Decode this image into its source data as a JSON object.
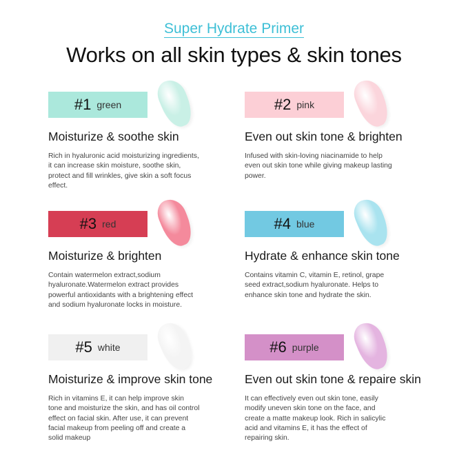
{
  "header": {
    "subtitle": "Super Hydrate Primer",
    "title": "Works on all skin types & skin tones"
  },
  "colors": {
    "accent": "#3dbfd6"
  },
  "items": [
    {
      "number": "#1",
      "color_name": "green",
      "box_color": "#abe8dc",
      "swatch_color": "#c9f0e6",
      "heading": "Moisturize & soothe skin",
      "body": "Rich in hyaluronic acid moisturizing ingredients, it can increase skin moisture, soothe skin, protect and fill wrinkles, give skin a soft focus effect."
    },
    {
      "number": "#2",
      "color_name": "pink",
      "box_color": "#fccfd6",
      "swatch_color": "#fbd5dc",
      "heading": "Even out skin tone & brighten",
      "body": "Infused with skin-loving niacinamide to help even out skin tone while giving makeup lasting power."
    },
    {
      "number": "#3",
      "color_name": "red",
      "box_color": "#d63e54",
      "swatch_color": "#f48a9c",
      "heading": "Moisturize & brighten",
      "body": "Contain watermelon extract,sodium hyaluronate.Watermelon extract provides powerful antioxidants with a brightening effect and sodium hyaluronate locks in moisture."
    },
    {
      "number": "#4",
      "color_name": "blue",
      "box_color": "#72c9e2",
      "swatch_color": "#a9e3ef",
      "heading": "Hydrate & enhance skin tone",
      "body": "Contains vitamin C, vitamin E, retinol, grape seed extract,sodium hyaluronate. Helps to enhance skin tone and hydrate the skin."
    },
    {
      "number": "#5",
      "color_name": "white",
      "box_color": "#f0f0f0",
      "swatch_color": "#f4f4f4",
      "heading": "Moisturize & improve skin tone",
      "body": "Rich in vitamins E, it can help improve skin tone and moisturize the skin, and has oil control effect on facial skin. After use, it can prevent facial makeup from peeling off and create a solid makeup"
    },
    {
      "number": "#6",
      "color_name": "purple",
      "box_color": "#d490c8",
      "swatch_color": "#e4b4e0",
      "heading": "Even out skin tone & repaire skin",
      "body": "It can effectively even out skin tone, easily modify uneven skin tone on the face, and create a matte makeup look. Rich in salicylic acid and vitamins E, it has the effect of repairing skin."
    }
  ]
}
